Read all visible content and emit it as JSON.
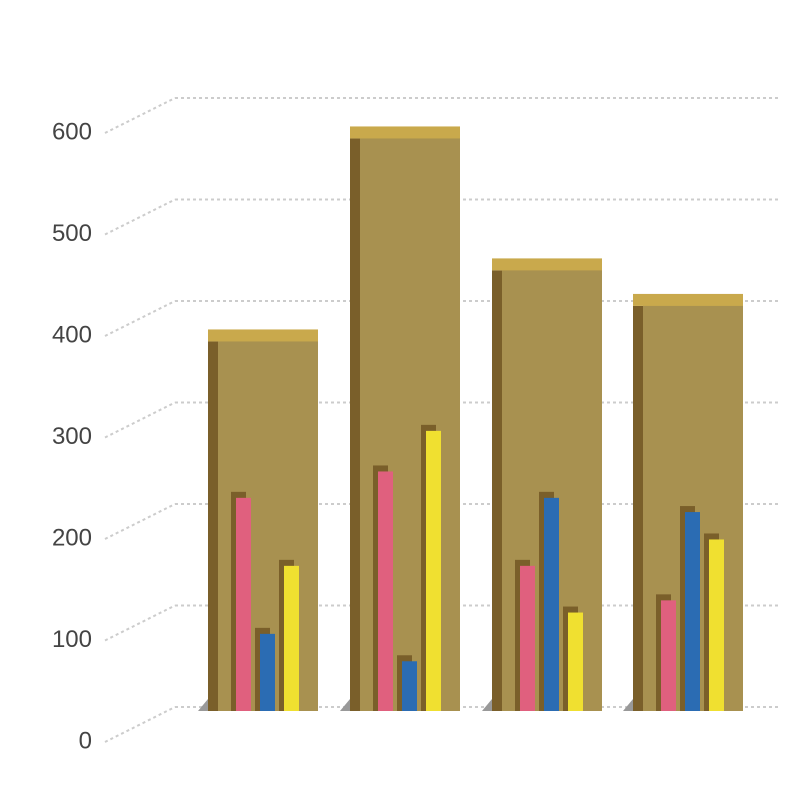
{
  "chart_data": {
    "type": "bar",
    "categories": [
      null,
      null,
      null,
      null
    ],
    "series": [
      {
        "color": "#a89150",
        "values": [
          370,
          570,
          440,
          405
        ]
      },
      {
        "color": "#e0607e",
        "values": [
          210,
          236,
          143,
          109
        ]
      },
      {
        "color": "#2b6cb3",
        "values": [
          76,
          49,
          210,
          196
        ]
      },
      {
        "color": "#f0e030",
        "values": [
          143,
          276,
          97,
          169
        ]
      }
    ],
    "ylim": [
      0,
      600
    ],
    "yticks": [
      0,
      100,
      200,
      300,
      400,
      500,
      600
    ],
    "grid": true
  }
}
